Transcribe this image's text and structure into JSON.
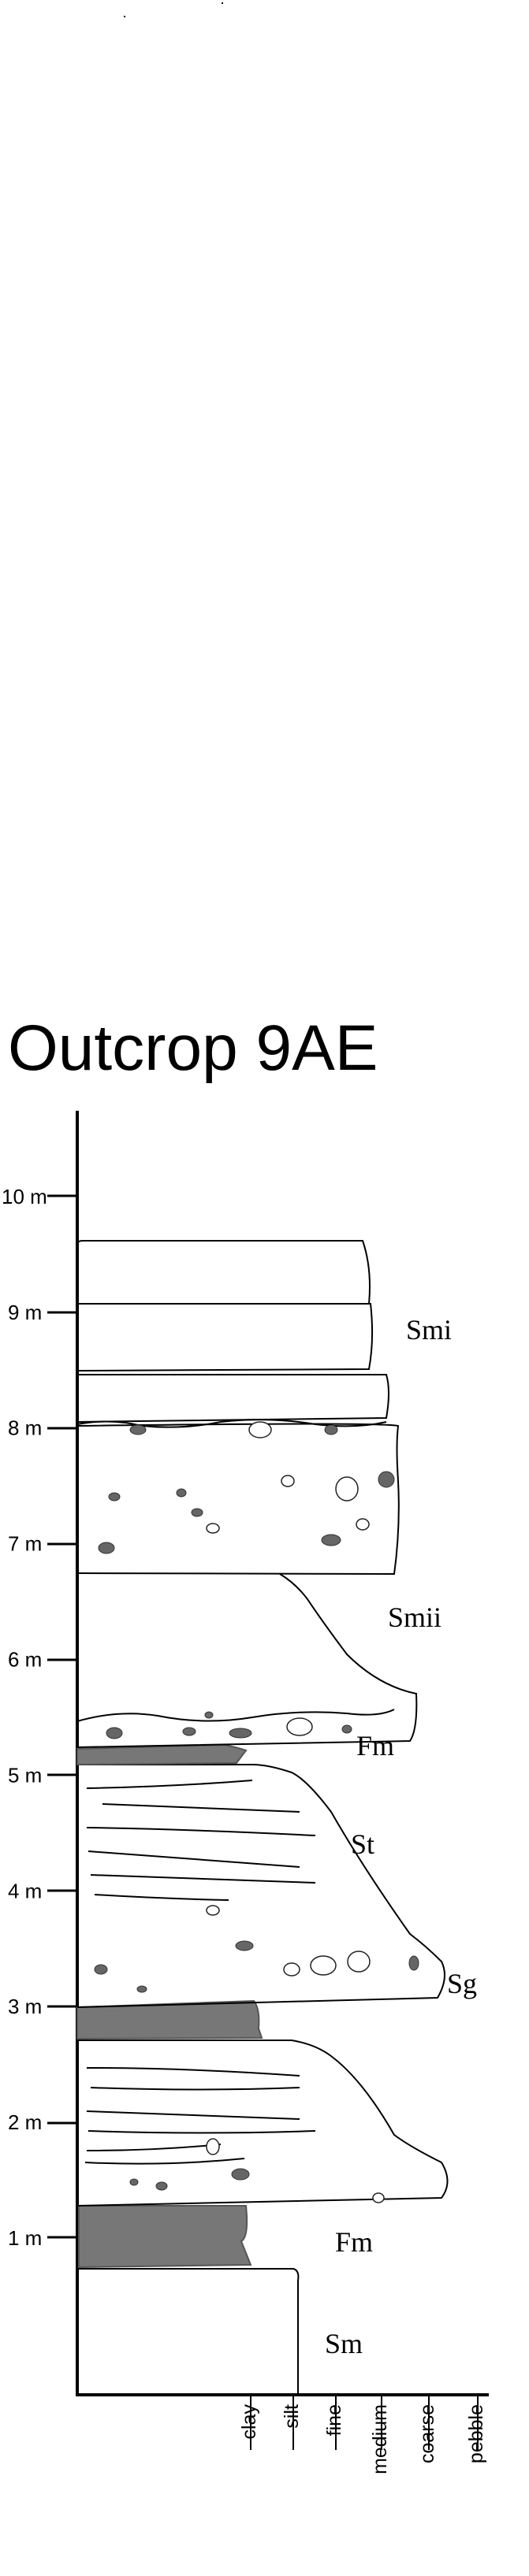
{
  "title": "Outcrop 9AE",
  "depth_axis": {
    "unit": "m",
    "ticks": [
      {
        "value": 1,
        "label": "1 m"
      },
      {
        "value": 2,
        "label": "2 m"
      },
      {
        "value": 3,
        "label": "3 m"
      },
      {
        "value": 4,
        "label": "4 m"
      },
      {
        "value": 5,
        "label": "5 m"
      },
      {
        "value": 6,
        "label": "6 m"
      },
      {
        "value": 7,
        "label": "7 m"
      },
      {
        "value": 8,
        "label": "8 m"
      },
      {
        "value": 9,
        "label": "9 m"
      },
      {
        "value": 10,
        "label": "10 m"
      }
    ]
  },
  "grain_size_axis": [
    "clay",
    "silt",
    "fine",
    "medium",
    "coarse",
    "pebble"
  ],
  "facies_labels": [
    "Sm",
    "Fm",
    "Sg",
    "St",
    "Fm",
    "Smii",
    "Smi"
  ],
  "colors": {
    "line": "#000000",
    "mudstone_fill": "#777777",
    "clast_fill": "#666666"
  }
}
